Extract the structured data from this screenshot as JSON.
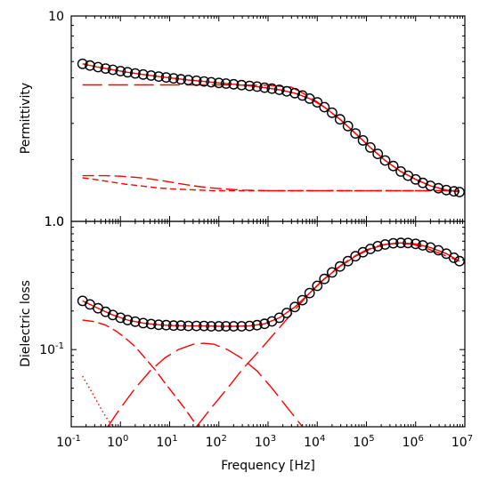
{
  "chart_data": [
    {
      "type": "line",
      "panel": "top",
      "ylabel": "Permittivity",
      "xscale": "log",
      "yscale": "log",
      "xlim": [
        0.1,
        10000000
      ],
      "ylim": [
        1,
        10
      ],
      "y_tick_labels": [
        "10",
        "1.0"
      ],
      "markers": {
        "style": "open-circle",
        "x": [
          0.17,
          0.24,
          0.35,
          0.5,
          0.7,
          1,
          1.4,
          2,
          2.9,
          4.2,
          6,
          8.5,
          12,
          17,
          24,
          35,
          50,
          70,
          100,
          140,
          200,
          290,
          420,
          600,
          850,
          1200,
          1700,
          2400,
          3500,
          5000,
          7000,
          10000,
          14000,
          20000,
          29000,
          42000,
          60000,
          85000,
          120000,
          170000,
          240000,
          350000,
          500000,
          700000,
          1000000,
          1400000,
          2000000,
          2900000,
          4200000,
          6000000,
          7800000
        ],
        "y": [
          5.85,
          5.74,
          5.64,
          5.55,
          5.47,
          5.39,
          5.32,
          5.25,
          5.19,
          5.13,
          5.07,
          5.02,
          4.97,
          4.92,
          4.88,
          4.84,
          4.8,
          4.76,
          4.72,
          4.69,
          4.65,
          4.61,
          4.57,
          4.53,
          4.48,
          4.43,
          4.37,
          4.3,
          4.21,
          4.1,
          3.96,
          3.8,
          3.6,
          3.38,
          3.14,
          2.91,
          2.68,
          2.48,
          2.29,
          2.13,
          1.98,
          1.86,
          1.75,
          1.67,
          1.6,
          1.54,
          1.49,
          1.45,
          1.42,
          1.4,
          1.39
        ]
      },
      "series": [
        {
          "name": "",
          "style": "solid",
          "color": "#ff0000",
          "x": [
            0.17,
            0.35,
            0.7,
            1.4,
            2.9,
            6,
            12,
            24,
            50,
            100,
            200,
            420,
            850,
            1700,
            3500,
            7000,
            14000,
            29000,
            60000,
            120000,
            240000,
            500000,
            1000000,
            2000000,
            4200000,
            7800000
          ],
          "y": [
            5.85,
            5.64,
            5.47,
            5.32,
            5.19,
            5.07,
            4.97,
            4.88,
            4.8,
            4.72,
            4.65,
            4.57,
            4.48,
            4.37,
            4.21,
            3.96,
            3.6,
            3.14,
            2.68,
            2.29,
            1.98,
            1.75,
            1.6,
            1.49,
            1.42,
            1.39
          ]
        },
        {
          "name": "",
          "style": "long-dash",
          "color": "#ff0000",
          "x": [
            0.17,
            1,
            10,
            100,
            1000,
            3000,
            7000,
            14000,
            29000,
            60000,
            120000,
            240000,
            500000,
            1000000,
            2000000,
            4200000,
            7800000
          ],
          "y": [
            4.62,
            4.62,
            4.62,
            4.62,
            4.6,
            4.5,
            4.05,
            3.6,
            3.14,
            2.68,
            2.29,
            1.98,
            1.75,
            1.6,
            1.49,
            1.42,
            1.39
          ]
        },
        {
          "name": "",
          "style": "dash",
          "color": "#ff0000",
          "x": [
            0.17,
            0.5,
            1,
            2,
            4,
            8,
            15,
            30,
            60,
            120,
            300,
            1000,
            10000,
            100000,
            1000000,
            7800000
          ],
          "y": [
            1.67,
            1.67,
            1.66,
            1.64,
            1.61,
            1.57,
            1.53,
            1.49,
            1.46,
            1.44,
            1.42,
            1.41,
            1.41,
            1.41,
            1.41,
            1.41
          ]
        },
        {
          "name": "",
          "style": "short-dash",
          "color": "#ff0000",
          "x": [
            0.17,
            0.3,
            0.6,
            1.2,
            2.5,
            5,
            10,
            20,
            40,
            80,
            200,
            1000,
            10000,
            100000,
            1000000,
            7800000
          ],
          "y": [
            1.63,
            1.6,
            1.56,
            1.52,
            1.49,
            1.46,
            1.44,
            1.43,
            1.42,
            1.41,
            1.41,
            1.41,
            1.41,
            1.41,
            1.41,
            1.41
          ]
        }
      ]
    },
    {
      "type": "line",
      "panel": "bottom",
      "xlabel": "Frequency [Hz]",
      "ylabel": "Dielectric loss",
      "xscale": "log",
      "yscale": "log",
      "xlim": [
        0.1,
        10000000
      ],
      "ylim": [
        0.025,
        1
      ],
      "x_tick_labels": [
        "10-1",
        "100",
        "101",
        "102",
        "103",
        "104",
        "105",
        "106",
        "107"
      ],
      "y_tick_labels": [
        "1.0",
        "10-1"
      ],
      "markers": {
        "style": "open-circle",
        "x": [
          0.17,
          0.24,
          0.35,
          0.5,
          0.7,
          1,
          1.4,
          2,
          2.9,
          4.2,
          6,
          8.5,
          12,
          17,
          24,
          35,
          50,
          70,
          100,
          140,
          200,
          290,
          420,
          600,
          850,
          1200,
          1700,
          2400,
          3500,
          5000,
          7000,
          10000,
          14000,
          20000,
          29000,
          42000,
          60000,
          85000,
          120000,
          170000,
          240000,
          350000,
          500000,
          700000,
          1000000,
          1400000,
          2000000,
          2900000,
          4200000,
          6000000,
          7800000
        ],
        "y": [
          0.24,
          0.225,
          0.21,
          0.197,
          0.186,
          0.177,
          0.17,
          0.165,
          0.161,
          0.158,
          0.156,
          0.155,
          0.154,
          0.154,
          0.153,
          0.153,
          0.153,
          0.152,
          0.152,
          0.152,
          0.152,
          0.152,
          0.153,
          0.155,
          0.159,
          0.166,
          0.177,
          0.193,
          0.215,
          0.243,
          0.276,
          0.314,
          0.356,
          0.4,
          0.445,
          0.49,
          0.535,
          0.575,
          0.61,
          0.64,
          0.66,
          0.675,
          0.68,
          0.678,
          0.668,
          0.65,
          0.625,
          0.595,
          0.56,
          0.52,
          0.49
        ]
      },
      "series": [
        {
          "name": "",
          "style": "solid",
          "color": "#ff0000",
          "x": [
            0.17,
            0.35,
            0.7,
            1.4,
            2.9,
            6,
            12,
            24,
            50,
            100,
            200,
            420,
            850,
            1700,
            3500,
            7000,
            14000,
            29000,
            60000,
            120000,
            240000,
            500000,
            1000000,
            2000000,
            4200000,
            7800000
          ],
          "y": [
            0.24,
            0.21,
            0.186,
            0.17,
            0.161,
            0.156,
            0.154,
            0.153,
            0.153,
            0.152,
            0.152,
            0.153,
            0.159,
            0.177,
            0.215,
            0.276,
            0.356,
            0.445,
            0.535,
            0.61,
            0.66,
            0.68,
            0.668,
            0.625,
            0.56,
            0.49
          ]
        },
        {
          "name": "",
          "style": "dash",
          "color": "#ff0000",
          "x": [
            0.17,
            0.3,
            0.5,
            0.8,
            1.2,
            2,
            3,
            5,
            8,
            12,
            20,
            30,
            40
          ],
          "y": [
            0.17,
            0.165,
            0.155,
            0.14,
            0.125,
            0.105,
            0.088,
            0.07,
            0.055,
            0.045,
            0.035,
            0.028,
            0.025
          ]
        },
        {
          "name": "",
          "style": "long-dash",
          "color": "#ff0000",
          "x": [
            0.55,
            1,
            2,
            4,
            8,
            15,
            30,
            50,
            80,
            150,
            300,
            600,
            1200,
            2500,
            5000
          ],
          "y": [
            0.025,
            0.035,
            0.05,
            0.068,
            0.086,
            0.1,
            0.11,
            0.112,
            0.11,
            0.1,
            0.085,
            0.068,
            0.05,
            0.035,
            0.025
          ]
        },
        {
          "name": "",
          "style": "long-dash",
          "color": "#ff0000",
          "x": [
            35,
            70,
            150,
            300,
            700,
            1500,
            3000,
            6000,
            12000,
            25000,
            50000,
            100000,
            200000,
            400000,
            800000,
            1500000,
            3000000,
            7800000
          ],
          "y": [
            0.025,
            0.035,
            0.05,
            0.07,
            0.1,
            0.14,
            0.19,
            0.26,
            0.34,
            0.43,
            0.52,
            0.6,
            0.655,
            0.675,
            0.665,
            0.625,
            0.565,
            0.49
          ]
        },
        {
          "name": "",
          "style": "dot",
          "color": "#ff0000",
          "x": [
            0.17,
            0.25,
            0.35,
            0.5,
            0.7
          ],
          "y": [
            0.062,
            0.048,
            0.038,
            0.03,
            0.025
          ]
        }
      ]
    }
  ]
}
